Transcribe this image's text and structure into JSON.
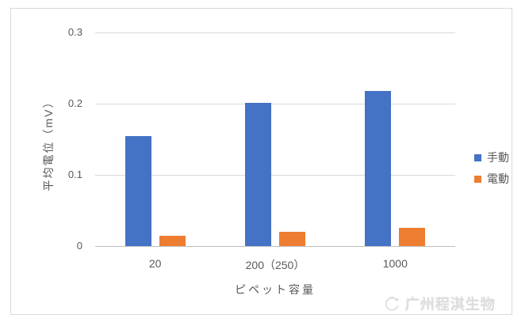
{
  "colors": {
    "series_manual": "#4472c4",
    "series_electric": "#ed7d31",
    "gridline": "#d9d9d9",
    "axis_line": "#bfbfbf",
    "text": "#595959",
    "frame_border": "#d9d9d9",
    "watermark": "#dcdcdc"
  },
  "chart_data": {
    "type": "bar",
    "title": "",
    "categories": [
      "20",
      "200（250）",
      "1000"
    ],
    "series": [
      {
        "name": "手動",
        "color_key": "series_manual",
        "values": [
          0.154,
          0.201,
          0.218
        ]
      },
      {
        "name": "電動",
        "color_key": "series_electric",
        "values": [
          0.014,
          0.02,
          0.026
        ]
      }
    ],
    "xlabel": "ピペット容量",
    "ylabel": "平均電位（mV）",
    "ylim": [
      0,
      0.3
    ],
    "yticks": [
      0,
      0.1,
      0.2,
      0.3
    ],
    "ytick_labels": [
      "0",
      "0.1",
      "0.2",
      "0.3"
    ],
    "grid": true,
    "legend_position": "right"
  },
  "watermark": {
    "text": "广州程淇生物",
    "logo": "swirl-logo-icon"
  }
}
